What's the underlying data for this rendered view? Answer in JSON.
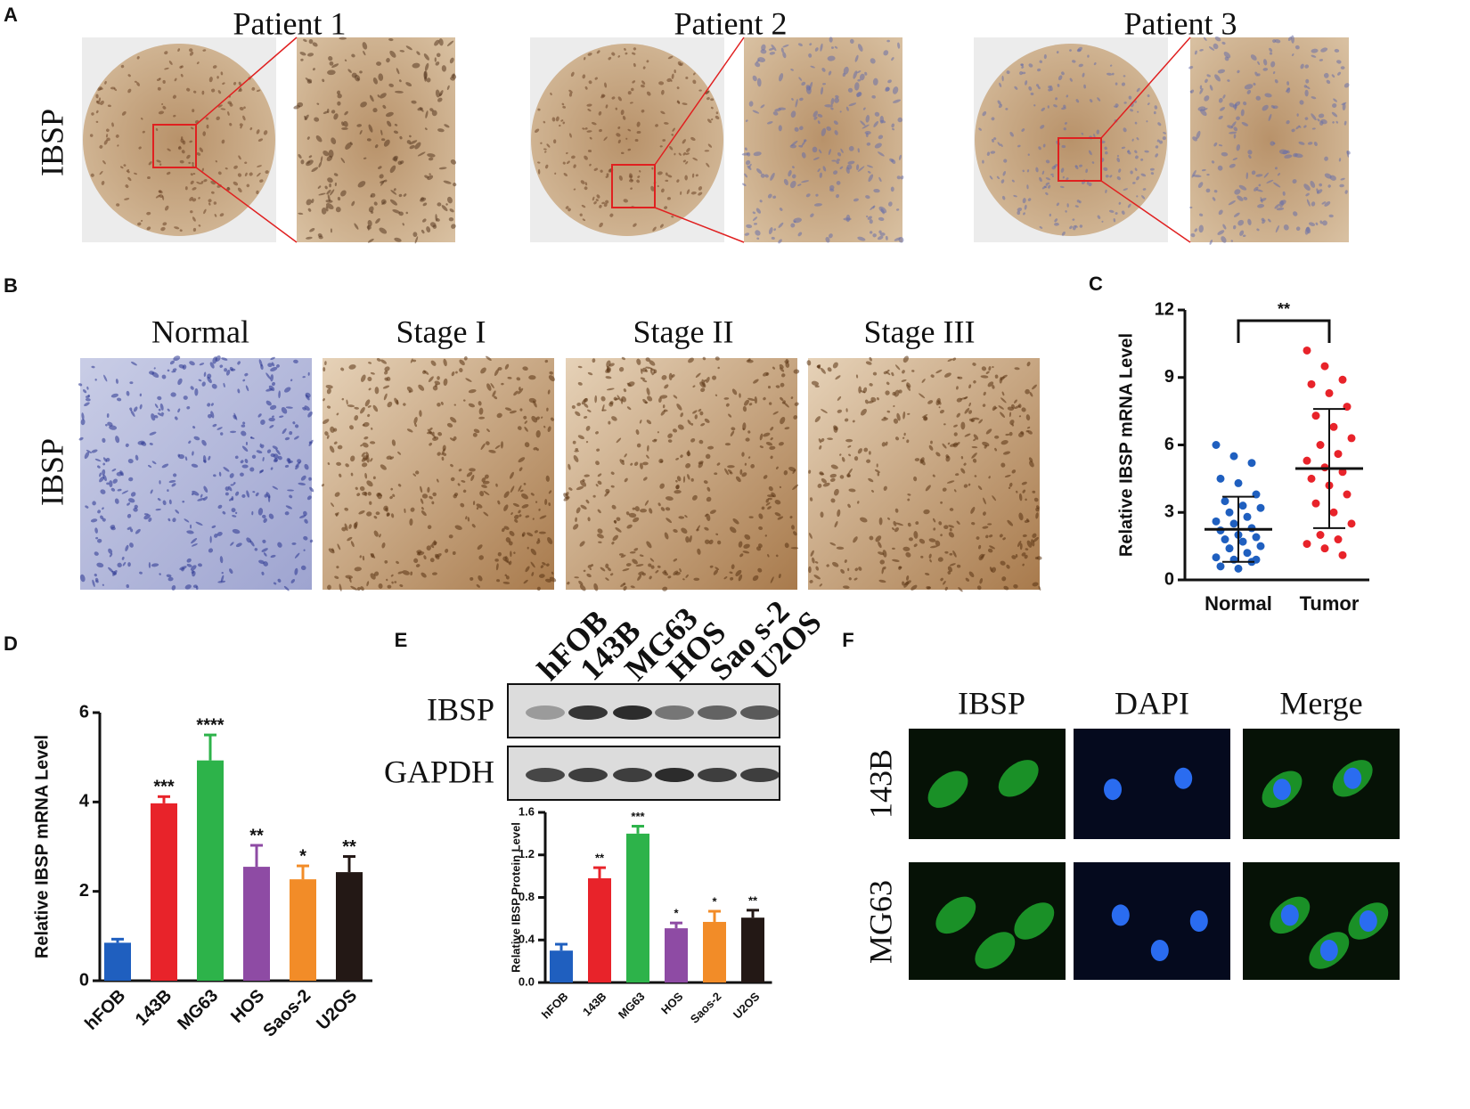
{
  "panels": {
    "labels": [
      "A",
      "B",
      "C",
      "D",
      "E",
      "F"
    ]
  },
  "panel_a": {
    "columns": [
      "Patient 1",
      "Patient 2",
      "Patient 3"
    ],
    "row_label": "IBSP"
  },
  "panel_b": {
    "columns": [
      "Normal",
      "Stage I",
      "Stage II",
      "Stage III"
    ],
    "row_label": "IBSP"
  },
  "panel_e_blot": {
    "lanes": [
      "hFOB",
      "143B",
      "MG63",
      "HOS",
      "Sao s-2",
      "U2OS"
    ],
    "rows": [
      "IBSP",
      "GAPDH"
    ]
  },
  "panel_f": {
    "columns": [
      "IBSP",
      "DAPI",
      "Merge"
    ],
    "rows": [
      "143B",
      "MG63"
    ]
  },
  "chart_data": [
    {
      "type": "scatter",
      "categories": [
        "Normal",
        "Tumor"
      ],
      "y_label": "Relative IBSP mRNA Level",
      "ylim": [
        0,
        12
      ],
      "yticks": [
        0,
        3,
        6,
        9,
        12
      ],
      "significance": "**",
      "series": [
        {
          "color": "#1f5fbf",
          "mean": 2.25,
          "sd": 1.45,
          "values": [
            6.0,
            5.5,
            5.2,
            4.5,
            4.3,
            3.8,
            3.5,
            3.3,
            3.2,
            3.0,
            2.8,
            2.6,
            2.5,
            2.3,
            2.2,
            2.0,
            1.9,
            1.8,
            1.7,
            1.5,
            1.4,
            1.2,
            1.0,
            0.9,
            0.8,
            0.6,
            0.5,
            0.9
          ]
        },
        {
          "color": "#e8232a",
          "mean": 4.95,
          "sd": 2.65,
          "values": [
            10.2,
            9.5,
            8.9,
            8.7,
            8.3,
            7.7,
            7.3,
            6.8,
            6.3,
            6.0,
            5.6,
            5.3,
            5.0,
            4.8,
            4.5,
            4.2,
            3.8,
            3.4,
            3.0,
            2.5,
            2.0,
            1.8,
            1.6,
            1.4,
            1.1
          ]
        }
      ]
    },
    {
      "type": "bar",
      "categories": [
        "hFOB",
        "143B",
        "MG63",
        "HOS",
        "Saos-2",
        "U2OS"
      ],
      "y_label": "Relative IBSP mRNA Level",
      "ylim": [
        0,
        6
      ],
      "yticks": [
        0,
        2,
        4,
        6
      ],
      "values": [
        0.85,
        3.97,
        4.93,
        2.55,
        2.27,
        2.43
      ],
      "errors": [
        0.08,
        0.15,
        0.57,
        0.48,
        0.3,
        0.35
      ],
      "colors": [
        "#1f5fbf",
        "#e8232a",
        "#2db34a",
        "#8e4ba4",
        "#f28c28",
        "#231815"
      ],
      "annotations": [
        null,
        "***",
        "****",
        "**",
        "*",
        "**"
      ]
    },
    {
      "type": "bar",
      "categories": [
        "hFOB",
        "143B",
        "MG63",
        "HOS",
        "Saos-2",
        "U2OS"
      ],
      "y_label": "Relative IBSP Protein Level",
      "ylim": [
        0,
        1.6
      ],
      "yticks": [
        {
          "value": 0,
          "label": "0.0"
        },
        0.4,
        0.8,
        1.2,
        1.6
      ],
      "values": [
        0.3,
        0.98,
        1.4,
        0.51,
        0.57,
        0.61
      ],
      "errors": [
        0.06,
        0.1,
        0.07,
        0.05,
        0.1,
        0.07
      ],
      "colors": [
        "#1f5fbf",
        "#e8232a",
        "#2db34a",
        "#8e4ba4",
        "#f28c28",
        "#231815"
      ],
      "annotations": [
        null,
        "**",
        "***",
        "*",
        "*",
        "**"
      ]
    }
  ]
}
